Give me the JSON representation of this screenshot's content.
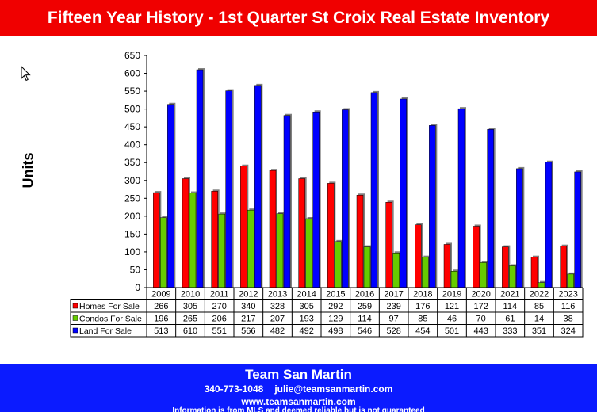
{
  "header": {
    "title": "Fifteen Year History - 1st Quarter St Croix Real Estate Inventory"
  },
  "chart_data": {
    "type": "bar",
    "title": "Fifteen Year History - 1st Quarter St Croix Real Estate Inventory",
    "ylabel": "Units",
    "xlabel": "",
    "ylim": [
      0,
      650
    ],
    "ytick_step": 50,
    "grid": false,
    "legend": "table-below",
    "categories": [
      "2009",
      "2010",
      "2011",
      "2012",
      "2013",
      "2014",
      "2015",
      "2016",
      "2017",
      "2018",
      "2019",
      "2020",
      "2021",
      "2022",
      "2023"
    ],
    "series": [
      {
        "name": "Homes For Sale",
        "color": "#ff0000",
        "values": [
          266,
          305,
          270,
          340,
          328,
          305,
          292,
          259,
          239,
          176,
          121,
          172,
          114,
          85,
          116
        ]
      },
      {
        "name": "Condos For Sale",
        "color": "#66cc00",
        "values": [
          196,
          265,
          206,
          217,
          207,
          193,
          129,
          114,
          97,
          85,
          46,
          70,
          61,
          14,
          38
        ]
      },
      {
        "name": "Land For Sale",
        "color": "#0000ff",
        "values": [
          513,
          610,
          551,
          566,
          482,
          492,
          498,
          546,
          528,
          454,
          501,
          443,
          333,
          351,
          324
        ]
      }
    ]
  },
  "footer": {
    "name": "Team San Martin",
    "phone": "340-773-1048",
    "email": "julie@teamsanmartin.com",
    "website": "www.teamsanmartin.com",
    "note": "Information is from MLS and deemed reliable but is not guaranteed"
  }
}
